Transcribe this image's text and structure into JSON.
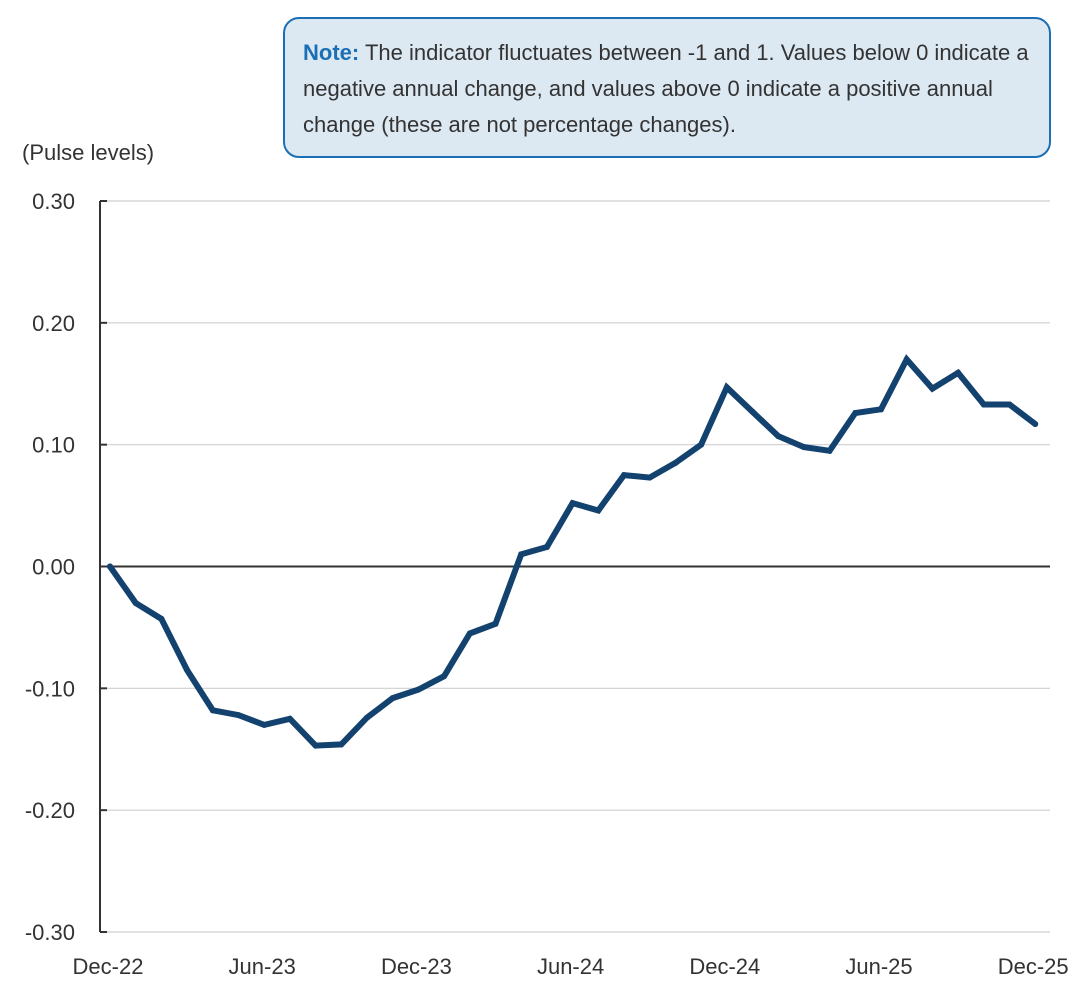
{
  "note": {
    "label": "Note:",
    "text": "The indicator fluctuates between -1 and 1. Values below 0 indicate a negative annual change, and values above 0 indicate a positive annual change (these are not percentage changes)."
  },
  "chart_data": {
    "type": "line",
    "title": "",
    "xlabel": "",
    "ylabel": "(Pulse levels)",
    "ylim": [
      -0.3,
      0.3
    ],
    "yticks": [
      "0.30",
      "0.20",
      "0.10",
      "0.00",
      "-0.10",
      "-0.20",
      "-0.30"
    ],
    "ytick_values": [
      0.3,
      0.2,
      0.1,
      0.0,
      -0.1,
      -0.2,
      -0.3
    ],
    "xticks": [
      "Dec-22",
      "Jun-23",
      "Dec-23",
      "Jun-24",
      "Dec-24",
      "Jun-25",
      "Dec-25"
    ],
    "grid": true,
    "line_color": "#13426f",
    "x": [
      "Dec-22",
      "Jan-23",
      "Feb-23",
      "Mar-23",
      "Apr-23",
      "May-23",
      "Jun-23",
      "Jul-23",
      "Aug-23",
      "Sep-23",
      "Oct-23",
      "Nov-23",
      "Dec-23",
      "Jan-24",
      "Feb-24",
      "Mar-24",
      "Apr-24",
      "May-24",
      "Jun-24",
      "Jul-24",
      "Aug-24",
      "Sep-24",
      "Oct-24",
      "Nov-24",
      "Dec-24",
      "Jan-25",
      "Feb-25",
      "Mar-25",
      "Apr-25",
      "May-25",
      "Jun-25",
      "Jul-25",
      "Aug-25",
      "Sep-25",
      "Oct-25",
      "Nov-25",
      "Dec-25"
    ],
    "series": [
      {
        "values": [
          0.0,
          -0.03,
          -0.043,
          -0.085,
          -0.118,
          -0.122,
          -0.13,
          -0.125,
          -0.147,
          -0.146,
          -0.124,
          -0.108,
          -0.101,
          -0.09,
          -0.055,
          -0.047,
          0.01,
          0.016,
          0.052,
          0.046,
          0.075,
          0.073,
          0.085,
          0.1,
          0.147,
          0.127,
          0.107,
          0.098,
          0.095,
          0.126,
          0.129,
          0.17,
          0.146,
          0.159,
          0.133,
          0.133,
          0.117
        ]
      }
    ]
  }
}
